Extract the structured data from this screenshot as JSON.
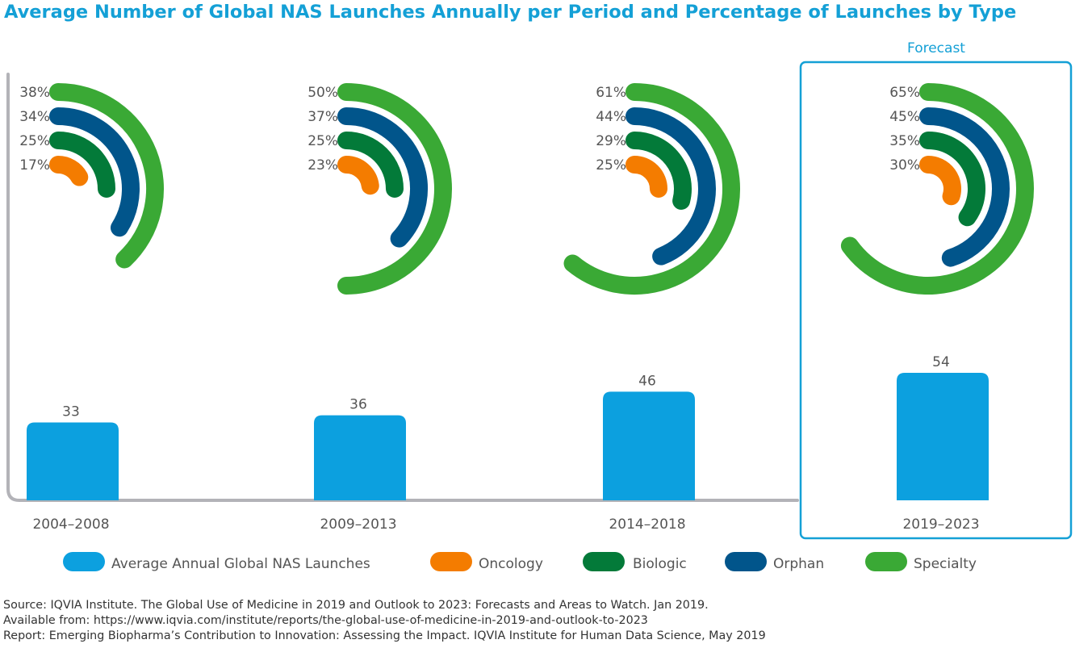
{
  "chart_data": {
    "type": "bar",
    "title": "Average Number of Global NAS Launches Annually per Period and Percentage of Launches by Type",
    "categories": [
      "2004–2008",
      "2009–2013",
      "2014–2018",
      "2019–2023"
    ],
    "forecast_label": "Forecast",
    "forecast_categories": [
      "2019–2023"
    ],
    "ylim": [
      0,
      54
    ],
    "series": [
      {
        "name": "Average Annual Global NAS Launches",
        "color": "#0ca0df",
        "values": [
          33,
          36,
          46,
          54
        ],
        "value_labels": [
          "33",
          "36",
          "46",
          "54"
        ]
      },
      {
        "name": "Oncology",
        "color": "#f47c00",
        "values": [
          17,
          23,
          25,
          30
        ],
        "value_labels": [
          "17%",
          "23%",
          "25%",
          "30%"
        ]
      },
      {
        "name": "Biologic",
        "color": "#037a39",
        "values": [
          25,
          25,
          29,
          35
        ],
        "value_labels": [
          "25%",
          "25%",
          "29%",
          "35%"
        ]
      },
      {
        "name": "Orphan",
        "color": "#01558b",
        "values": [
          34,
          37,
          44,
          45
        ],
        "value_labels": [
          "34%",
          "37%",
          "44%",
          "45%"
        ]
      },
      {
        "name": "Specialty",
        "color": "#3aa935",
        "values": [
          38,
          50,
          61,
          65
        ],
        "value_labels": [
          "38%",
          "50%",
          "61%",
          "65%"
        ]
      }
    ],
    "legend_position": "bottom"
  },
  "source": {
    "line1": "Source: IQVIA Institute. The Global Use of Medicine in 2019 and Outlook to 2023: Forecasts and Areas to Watch. Jan 2019.",
    "line2": "Available from: https://www.iqvia.com/institute/reports/the-global-use-of-medicine-in-2019-and-outlook-to-2023",
    "line3": "Report: Emerging Biopharma’s Contribution to Innovation: Assessing the Impact. IQVIA Institute for Human Data Science, May 2019"
  },
  "colors": {
    "title": "#14a0d6",
    "forecast_box": "#14a0d6",
    "axis": "#b3b3b8",
    "text": "#555555"
  }
}
